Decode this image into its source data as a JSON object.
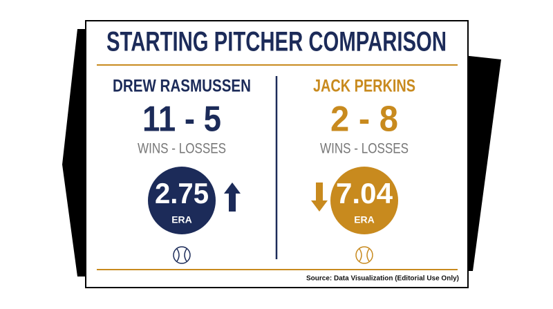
{
  "title": "STARTING PITCHER COMPARISON",
  "pitchers": [
    {
      "name": "DREW RASMUSSEN",
      "record": "11 - 5",
      "record_label": "WINS - LOSSES",
      "era": 2.75,
      "era_label": "ERA"
    },
    {
      "name": "JACK PERKINS",
      "record": "2 - 8",
      "record_label": "WINS - LOSSES",
      "era": 7.04,
      "era_label": "ERA"
    }
  ],
  "source": "Source: Data Visualization (Editorial Use Only)"
}
